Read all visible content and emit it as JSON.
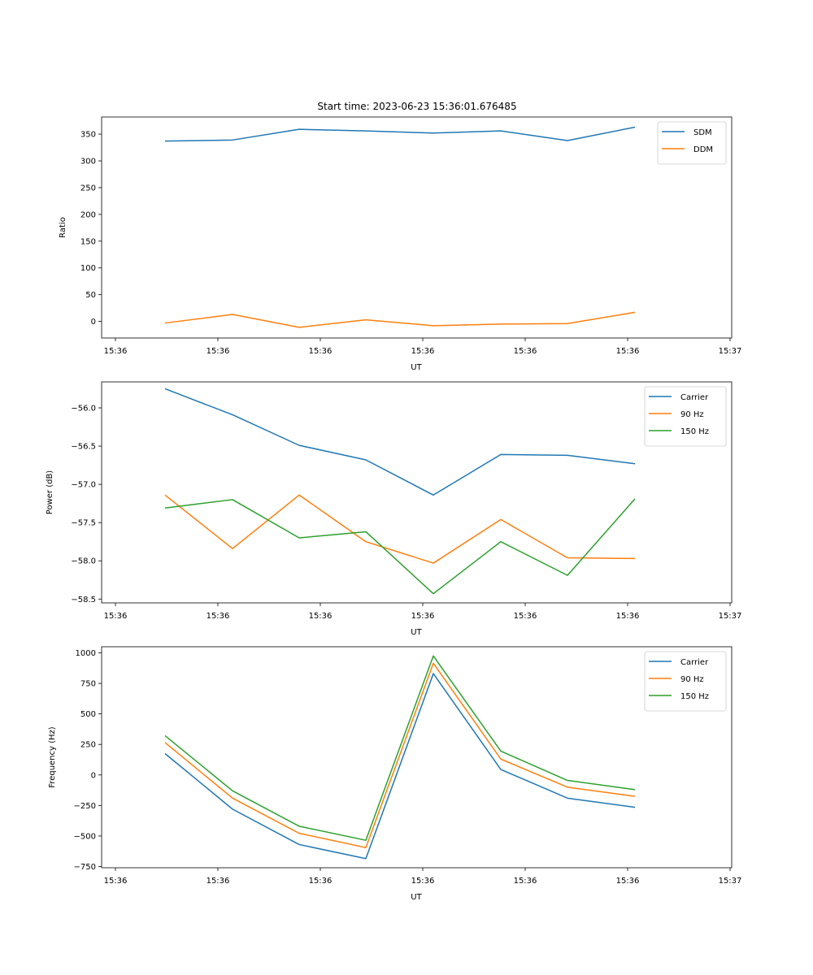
{
  "figure_title": "Start time: 2023-06-23 15:36:01.676485",
  "colors": {
    "blue": "#1f77b4",
    "orange": "#ff7f0e",
    "green": "#2ca02c"
  },
  "chart_data": [
    {
      "type": "line",
      "title": "Start time: 2023-06-23 15:36:01.676485",
      "xlabel": "UT",
      "ylabel": "Ratio",
      "x_tick_labels": [
        "15:36",
        "15:36",
        "15:36",
        "15:36",
        "15:36",
        "15:36",
        "15:36",
        "15:37"
      ],
      "y_ticks": [
        0,
        50,
        100,
        150,
        200,
        250,
        300,
        350
      ],
      "y_tick_labels": [
        "0",
        "50",
        "100",
        "150",
        "200",
        "250",
        "300",
        "350"
      ],
      "ylim": [
        -31,
        382
      ],
      "legend_position": "top-right",
      "series": [
        {
          "name": "SDM",
          "color": "#1f77b4",
          "values": [
            337,
            339,
            359,
            356,
            352,
            356,
            338,
            363
          ]
        },
        {
          "name": "DDM",
          "color": "#ff7f0e",
          "values": [
            -3,
            13,
            -11,
            3,
            -8,
            -5,
            -4,
            17
          ]
        }
      ]
    },
    {
      "type": "line",
      "xlabel": "UT",
      "ylabel": "Power (dB)",
      "x_tick_labels": [
        "15:36",
        "15:36",
        "15:36",
        "15:36",
        "15:36",
        "15:36",
        "15:36",
        "15:37"
      ],
      "y_ticks": [
        -56.0,
        -56.5,
        -57.0,
        -57.5,
        -58.0,
        -58.5
      ],
      "y_tick_labels": [
        "−56.0",
        "−56.5",
        "−57.0",
        "−57.5",
        "−58.0",
        "−58.5"
      ],
      "ylim": [
        -58.55,
        -55.66
      ],
      "legend_position": "top-right",
      "series": [
        {
          "name": "Carrier",
          "color": "#1f77b4",
          "values": [
            -55.75,
            -56.09,
            -56.49,
            -56.68,
            -57.14,
            -56.61,
            -56.62,
            -56.73
          ]
        },
        {
          "name": "90 Hz",
          "color": "#ff7f0e",
          "values": [
            -57.14,
            -57.84,
            -57.14,
            -57.75,
            -58.03,
            -57.46,
            -57.96,
            -57.97
          ]
        },
        {
          "name": "150 Hz",
          "color": "#2ca02c",
          "values": [
            -57.31,
            -57.2,
            -57.7,
            -57.62,
            -58.43,
            -57.75,
            -58.19,
            -57.19
          ]
        }
      ]
    },
    {
      "type": "line",
      "xlabel": "UT",
      "ylabel": "Frequency (Hz)",
      "x_tick_labels": [
        "15:36",
        "15:36",
        "15:36",
        "15:36",
        "15:36",
        "15:36",
        "15:36",
        "15:37"
      ],
      "y_ticks": [
        1000,
        750,
        500,
        250,
        0,
        -250,
        -500,
        -750
      ],
      "y_tick_labels": [
        "1000",
        "750",
        "500",
        "250",
        "0",
        "−250",
        "−500",
        "−750"
      ],
      "ylim": [
        -760,
        1050
      ],
      "legend_position": "top-right",
      "series": [
        {
          "name": "Carrier",
          "color": "#1f77b4",
          "values": [
            175,
            -280,
            -570,
            -685,
            830,
            45,
            -190,
            -265
          ]
        },
        {
          "name": "90 Hz",
          "color": "#ff7f0e",
          "values": [
            265,
            -190,
            -478,
            -595,
            915,
            130,
            -100,
            -175
          ]
        },
        {
          "name": "150 Hz",
          "color": "#2ca02c",
          "values": [
            322,
            -130,
            -420,
            -535,
            975,
            195,
            -45,
            -120
          ]
        }
      ]
    }
  ]
}
